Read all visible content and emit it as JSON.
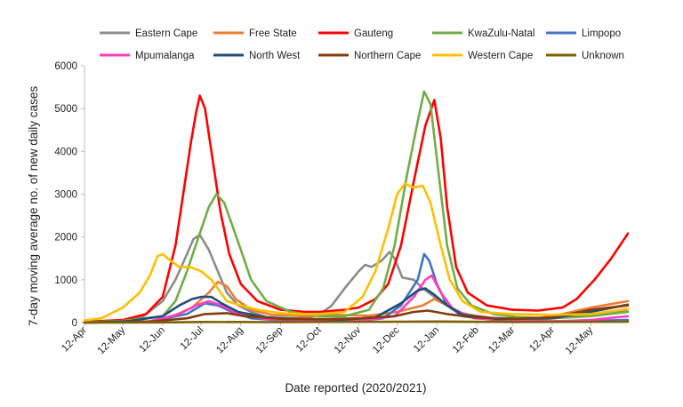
{
  "chart_data": {
    "type": "line",
    "title": "",
    "xlabel": "Date reported (2020/2021)",
    "ylabel": "7-day moving average no. of new daily cases",
    "ylim": [
      0,
      6000
    ],
    "yticks": [
      0,
      1000,
      2000,
      3000,
      4000,
      5000,
      6000
    ],
    "x_axis": {
      "type": "date",
      "start": "2020-04-12",
      "end": "2021-06-10"
    },
    "xticks": [
      {
        "label": "12-Apr",
        "date": "2020-04-12"
      },
      {
        "label": "12-May",
        "date": "2020-05-12"
      },
      {
        "label": "12-Jun",
        "date": "2020-06-12"
      },
      {
        "label": "12-Jul",
        "date": "2020-07-12"
      },
      {
        "label": "12-Aug",
        "date": "2020-08-12"
      },
      {
        "label": "12-Sep",
        "date": "2020-09-12"
      },
      {
        "label": "12-Oct",
        "date": "2020-10-12"
      },
      {
        "label": "12-Nov",
        "date": "2020-11-12"
      },
      {
        "label": "12-Dec",
        "date": "2020-12-12"
      },
      {
        "label": "12-Jan",
        "date": "2021-01-12"
      },
      {
        "label": "12-Feb",
        "date": "2021-02-12"
      },
      {
        "label": "12-Mar",
        "date": "2021-03-12"
      },
      {
        "label": "12-Apr",
        "date": "2021-04-12"
      },
      {
        "label": "12-May",
        "date": "2021-05-12"
      }
    ],
    "grid": false,
    "legend_position": "top",
    "series": [
      {
        "name": "Eastern Cape",
        "color": "#8c8c8c",
        "points": [
          [
            "2020-04-12",
            5
          ],
          [
            "2020-05-12",
            40
          ],
          [
            "2020-05-28",
            150
          ],
          [
            "2020-06-12",
            500
          ],
          [
            "2020-06-22",
            1000
          ],
          [
            "2020-07-01",
            1600
          ],
          [
            "2020-07-06",
            1950
          ],
          [
            "2020-07-11",
            2050
          ],
          [
            "2020-07-18",
            1700
          ],
          [
            "2020-07-25",
            1200
          ],
          [
            "2020-08-01",
            700
          ],
          [
            "2020-08-10",
            400
          ],
          [
            "2020-08-20",
            250
          ],
          [
            "2020-09-01",
            130
          ],
          [
            "2020-09-15",
            90
          ],
          [
            "2020-10-01",
            100
          ],
          [
            "2020-10-12",
            180
          ],
          [
            "2020-10-22",
            400
          ],
          [
            "2020-11-01",
            800
          ],
          [
            "2020-11-12",
            1200
          ],
          [
            "2020-11-17",
            1350
          ],
          [
            "2020-11-22",
            1300
          ],
          [
            "2020-11-30",
            1450
          ],
          [
            "2020-12-06",
            1650
          ],
          [
            "2020-12-10",
            1500
          ],
          [
            "2020-12-16",
            1050
          ],
          [
            "2020-12-25",
            1000
          ],
          [
            "2021-01-01",
            800
          ],
          [
            "2021-01-10",
            600
          ],
          [
            "2021-01-20",
            400
          ],
          [
            "2021-02-01",
            220
          ],
          [
            "2021-02-15",
            130
          ],
          [
            "2021-03-01",
            90
          ],
          [
            "2021-04-01",
            70
          ],
          [
            "2021-04-20",
            120
          ],
          [
            "2021-05-10",
            200
          ],
          [
            "2021-06-10",
            260
          ]
        ]
      },
      {
        "name": "Free State",
        "color": "#ed7d31",
        "points": [
          [
            "2020-04-12",
            0
          ],
          [
            "2020-06-01",
            30
          ],
          [
            "2020-06-20",
            150
          ],
          [
            "2020-07-05",
            350
          ],
          [
            "2020-07-18",
            700
          ],
          [
            "2020-07-25",
            950
          ],
          [
            "2020-08-01",
            850
          ],
          [
            "2020-08-08",
            550
          ],
          [
            "2020-08-20",
            300
          ],
          [
            "2020-09-05",
            180
          ],
          [
            "2020-10-01",
            150
          ],
          [
            "2020-10-25",
            180
          ],
          [
            "2020-11-20",
            160
          ],
          [
            "2020-12-12",
            250
          ],
          [
            "2021-01-01",
            400
          ],
          [
            "2021-01-10",
            550
          ],
          [
            "2021-01-20",
            400
          ],
          [
            "2021-02-01",
            200
          ],
          [
            "2021-03-01",
            90
          ],
          [
            "2021-04-01",
            100
          ],
          [
            "2021-04-20",
            200
          ],
          [
            "2021-05-12",
            350
          ],
          [
            "2021-06-10",
            500
          ]
        ]
      },
      {
        "name": "Gauteng",
        "color": "#ff0000",
        "points": [
          [
            "2020-04-12",
            20
          ],
          [
            "2020-05-12",
            60
          ],
          [
            "2020-05-30",
            200
          ],
          [
            "2020-06-12",
            600
          ],
          [
            "2020-06-22",
            1800
          ],
          [
            "2020-06-28",
            3000
          ],
          [
            "2020-07-04",
            4200
          ],
          [
            "2020-07-08",
            4900
          ],
          [
            "2020-07-11",
            5300
          ],
          [
            "2020-07-15",
            5000
          ],
          [
            "2020-07-20",
            4000
          ],
          [
            "2020-07-27",
            2600
          ],
          [
            "2020-08-03",
            1600
          ],
          [
            "2020-08-12",
            900
          ],
          [
            "2020-08-25",
            500
          ],
          [
            "2020-09-12",
            300
          ],
          [
            "2020-10-01",
            250
          ],
          [
            "2020-10-12",
            250
          ],
          [
            "2020-11-01",
            300
          ],
          [
            "2020-11-12",
            350
          ],
          [
            "2020-11-25",
            550
          ],
          [
            "2020-12-05",
            900
          ],
          [
            "2020-12-15",
            1800
          ],
          [
            "2020-12-25",
            3300
          ],
          [
            "2021-01-03",
            4600
          ],
          [
            "2021-01-10",
            5200
          ],
          [
            "2021-01-15",
            4300
          ],
          [
            "2021-01-20",
            2700
          ],
          [
            "2021-01-27",
            1300
          ],
          [
            "2021-02-05",
            700
          ],
          [
            "2021-02-20",
            400
          ],
          [
            "2021-03-12",
            300
          ],
          [
            "2021-04-01",
            280
          ],
          [
            "2021-04-20",
            350
          ],
          [
            "2021-05-01",
            550
          ],
          [
            "2021-05-15",
            1000
          ],
          [
            "2021-05-28",
            1500
          ],
          [
            "2021-06-10",
            2080
          ]
        ]
      },
      {
        "name": "KwaZulu-Natal",
        "color": "#70ad47",
        "points": [
          [
            "2020-04-12",
            10
          ],
          [
            "2020-05-12",
            40
          ],
          [
            "2020-06-12",
            150
          ],
          [
            "2020-06-22",
            500
          ],
          [
            "2020-07-01",
            1200
          ],
          [
            "2020-07-10",
            2000
          ],
          [
            "2020-07-18",
            2700
          ],
          [
            "2020-07-24",
            3000
          ],
          [
            "2020-07-30",
            2800
          ],
          [
            "2020-08-05",
            2300
          ],
          [
            "2020-08-12",
            1700
          ],
          [
            "2020-08-20",
            1000
          ],
          [
            "2020-09-01",
            500
          ],
          [
            "2020-09-20",
            250
          ],
          [
            "2020-10-12",
            150
          ],
          [
            "2020-11-01",
            150
          ],
          [
            "2020-11-20",
            300
          ],
          [
            "2020-12-01",
            800
          ],
          [
            "2020-12-10",
            1800
          ],
          [
            "2020-12-20",
            3500
          ],
          [
            "2020-12-28",
            4700
          ],
          [
            "2021-01-02",
            5400
          ],
          [
            "2021-01-07",
            5100
          ],
          [
            "2021-01-14",
            3300
          ],
          [
            "2021-01-20",
            1800
          ],
          [
            "2021-01-28",
            800
          ],
          [
            "2021-02-08",
            400
          ],
          [
            "2021-02-25",
            200
          ],
          [
            "2021-03-15",
            130
          ],
          [
            "2021-04-12",
            100
          ],
          [
            "2021-05-12",
            150
          ],
          [
            "2021-06-10",
            250
          ]
        ]
      },
      {
        "name": "Limpopo",
        "color": "#4472c4",
        "points": [
          [
            "2020-04-12",
            0
          ],
          [
            "2020-06-01",
            20
          ],
          [
            "2020-07-01",
            200
          ],
          [
            "2020-07-15",
            450
          ],
          [
            "2020-07-25",
            400
          ],
          [
            "2020-08-05",
            250
          ],
          [
            "2020-08-20",
            100
          ],
          [
            "2020-09-12",
            50
          ],
          [
            "2020-10-12",
            40
          ],
          [
            "2020-11-12",
            40
          ],
          [
            "2020-12-01",
            100
          ],
          [
            "2020-12-15",
            400
          ],
          [
            "2020-12-28",
            1000
          ],
          [
            "2021-01-02",
            1600
          ],
          [
            "2021-01-06",
            1450
          ],
          [
            "2021-01-12",
            900
          ],
          [
            "2021-01-20",
            400
          ],
          [
            "2021-02-01",
            150
          ],
          [
            "2021-03-01",
            50
          ],
          [
            "2021-04-12",
            30
          ],
          [
            "2021-05-12",
            40
          ],
          [
            "2021-06-10",
            60
          ]
        ]
      },
      {
        "name": "Mpumalanga",
        "color": "#ff3fbf",
        "points": [
          [
            "2020-04-12",
            0
          ],
          [
            "2020-06-01",
            20
          ],
          [
            "2020-06-25",
            200
          ],
          [
            "2020-07-08",
            400
          ],
          [
            "2020-07-18",
            500
          ],
          [
            "2020-07-28",
            400
          ],
          [
            "2020-08-10",
            200
          ],
          [
            "2020-09-01",
            80
          ],
          [
            "2020-10-12",
            50
          ],
          [
            "2020-11-12",
            40
          ],
          [
            "2020-12-10",
            150
          ],
          [
            "2020-12-25",
            600
          ],
          [
            "2021-01-03",
            1000
          ],
          [
            "2021-01-08",
            1100
          ],
          [
            "2021-01-15",
            700
          ],
          [
            "2021-01-25",
            300
          ],
          [
            "2021-02-10",
            100
          ],
          [
            "2021-03-12",
            50
          ],
          [
            "2021-04-12",
            30
          ],
          [
            "2021-05-12",
            60
          ],
          [
            "2021-06-10",
            150
          ]
        ]
      },
      {
        "name": "North West",
        "color": "#1f4e79",
        "points": [
          [
            "2020-04-12",
            0
          ],
          [
            "2020-05-15",
            30
          ],
          [
            "2020-06-12",
            150
          ],
          [
            "2020-06-25",
            400
          ],
          [
            "2020-07-05",
            550
          ],
          [
            "2020-07-12",
            600
          ],
          [
            "2020-07-20",
            600
          ],
          [
            "2020-07-28",
            450
          ],
          [
            "2020-08-10",
            250
          ],
          [
            "2020-09-01",
            120
          ],
          [
            "2020-10-01",
            80
          ],
          [
            "2020-11-01",
            70
          ],
          [
            "2020-11-25",
            120
          ],
          [
            "2020-12-15",
            450
          ],
          [
            "2020-12-28",
            750
          ],
          [
            "2021-01-03",
            800
          ],
          [
            "2021-01-10",
            650
          ],
          [
            "2021-01-20",
            400
          ],
          [
            "2021-02-01",
            180
          ],
          [
            "2021-03-01",
            80
          ],
          [
            "2021-04-12",
            100
          ],
          [
            "2021-05-12",
            250
          ],
          [
            "2021-06-10",
            420
          ]
        ]
      },
      {
        "name": "Northern Cape",
        "color": "#843c0c",
        "points": [
          [
            "2020-04-12",
            0
          ],
          [
            "2020-06-01",
            20
          ],
          [
            "2020-07-01",
            100
          ],
          [
            "2020-07-15",
            200
          ],
          [
            "2020-08-01",
            220
          ],
          [
            "2020-08-15",
            150
          ],
          [
            "2020-09-15",
            80
          ],
          [
            "2020-10-15",
            80
          ],
          [
            "2020-11-15",
            100
          ],
          [
            "2020-12-10",
            150
          ],
          [
            "2020-12-25",
            250
          ],
          [
            "2021-01-05",
            280
          ],
          [
            "2021-01-20",
            200
          ],
          [
            "2021-02-10",
            120
          ],
          [
            "2021-03-15",
            90
          ],
          [
            "2021-04-12",
            120
          ],
          [
            "2021-05-12",
            300
          ],
          [
            "2021-06-10",
            400
          ]
        ]
      },
      {
        "name": "Western Cape",
        "color": "#ffc000",
        "points": [
          [
            "2020-04-12",
            50
          ],
          [
            "2020-04-25",
            100
          ],
          [
            "2020-05-12",
            350
          ],
          [
            "2020-05-25",
            700
          ],
          [
            "2020-06-02",
            1100
          ],
          [
            "2020-06-08",
            1550
          ],
          [
            "2020-06-12",
            1600
          ],
          [
            "2020-06-18",
            1450
          ],
          [
            "2020-06-25",
            1300
          ],
          [
            "2020-07-03",
            1300
          ],
          [
            "2020-07-12",
            1200
          ],
          [
            "2020-07-20",
            1000
          ],
          [
            "2020-08-01",
            500
          ],
          [
            "2020-08-12",
            400
          ],
          [
            "2020-08-25",
            300
          ],
          [
            "2020-09-12",
            220
          ],
          [
            "2020-10-01",
            200
          ],
          [
            "2020-10-12",
            200
          ],
          [
            "2020-11-01",
            250
          ],
          [
            "2020-11-15",
            600
          ],
          [
            "2020-11-25",
            1200
          ],
          [
            "2020-12-05",
            2200
          ],
          [
            "2020-12-12",
            3000
          ],
          [
            "2020-12-18",
            3250
          ],
          [
            "2020-12-25",
            3150
          ],
          [
            "2021-01-01",
            3200
          ],
          [
            "2021-01-07",
            2800
          ],
          [
            "2021-01-15",
            1800
          ],
          [
            "2021-01-22",
            1000
          ],
          [
            "2021-02-01",
            500
          ],
          [
            "2021-02-15",
            250
          ],
          [
            "2021-03-12",
            200
          ],
          [
            "2021-04-12",
            180
          ],
          [
            "2021-05-12",
            200
          ],
          [
            "2021-06-10",
            320
          ]
        ]
      },
      {
        "name": "Unknown",
        "color": "#7f6000",
        "points": [
          [
            "2020-04-12",
            0
          ],
          [
            "2020-06-12",
            5
          ],
          [
            "2020-07-12",
            15
          ],
          [
            "2020-09-12",
            10
          ],
          [
            "2020-12-12",
            20
          ],
          [
            "2021-01-12",
            25
          ],
          [
            "2021-03-12",
            15
          ],
          [
            "2021-06-10",
            20
          ]
        ]
      }
    ]
  }
}
